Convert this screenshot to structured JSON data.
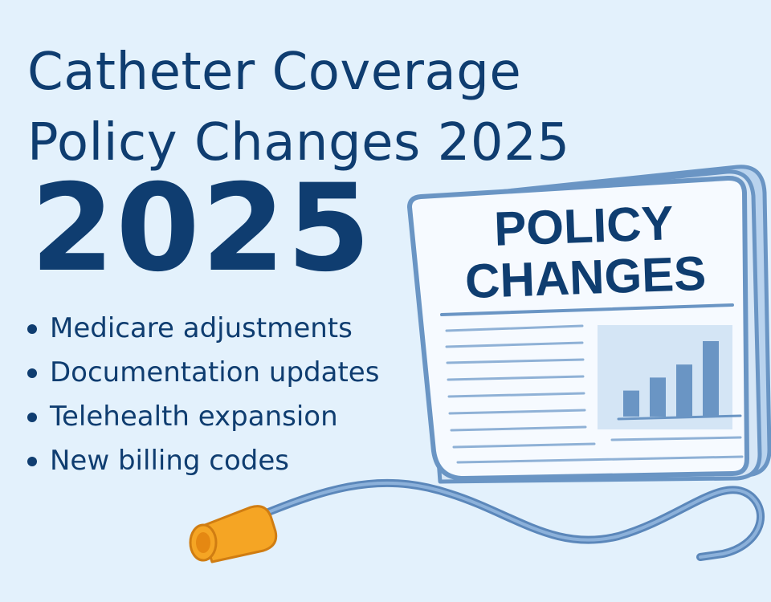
{
  "title_lines": [
    "Catheter Coverage",
    "Policy Changes 2025"
  ],
  "year": "2025",
  "bullets": [
    "Medicare adjustments",
    "Documentation updates",
    "Telehealth expansion",
    "New billing codes"
  ],
  "newspaper": {
    "heading_lines": [
      "POLICY",
      "CHANGES"
    ],
    "chart_values": [
      1,
      1.5,
      2,
      2.9
    ]
  },
  "colors": {
    "background": "#e3f1fc",
    "text": "#0f3d70",
    "paper": "#f6faff",
    "paper_border": "#6a95c4",
    "accent_blue": "#6a95c4",
    "catheter_tip": "#f5a524"
  }
}
